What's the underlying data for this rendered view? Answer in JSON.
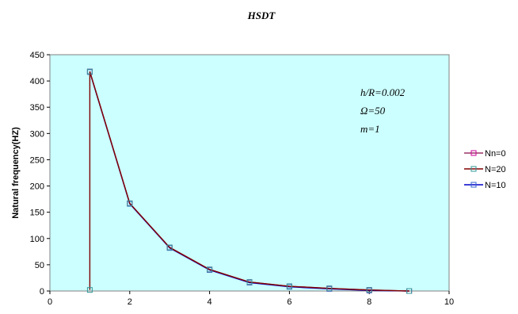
{
  "chart_data": {
    "type": "line",
    "title": "HSDT",
    "xlabel": "",
    "ylabel": "Natural frequency(HZ)",
    "xlim": [
      0,
      10
    ],
    "ylim": [
      0,
      450
    ],
    "xticks": [
      "0",
      "2",
      "4",
      "6",
      "8",
      "10"
    ],
    "yticks": [
      "0",
      "50",
      "100",
      "150",
      "200",
      "250",
      "300",
      "350",
      "400",
      "450"
    ],
    "annotations": [
      "h/R=0.002",
      "Ω=50",
      "m=1"
    ],
    "legend_position": "right",
    "plot_background": "#ccffff",
    "grid": false,
    "series": [
      {
        "name": "Nn=0",
        "color": "#993366",
        "marker_color": "#cc0099",
        "points": [
          [
            1,
            418
          ],
          [
            2,
            167
          ],
          [
            3,
            83
          ],
          [
            4,
            41
          ],
          [
            5,
            17
          ],
          [
            6,
            9
          ],
          [
            7,
            5
          ],
          [
            8,
            2
          ],
          [
            9,
            0
          ]
        ]
      },
      {
        "name": "N=20",
        "color": "#800000",
        "marker_color": "#339999",
        "points": [
          [
            1,
            2
          ],
          [
            1,
            418
          ],
          [
            2,
            167
          ],
          [
            3,
            83
          ],
          [
            4,
            41
          ],
          [
            5,
            17
          ],
          [
            6,
            9
          ],
          [
            7,
            5
          ],
          [
            8,
            2
          ],
          [
            9,
            0
          ]
        ]
      },
      {
        "name": "N=10",
        "color": "#0000cc",
        "marker_color": "#3366cc",
        "points": [
          [
            1,
            417
          ],
          [
            2,
            166
          ],
          [
            3,
            82
          ],
          [
            4,
            40
          ],
          [
            5,
            16
          ],
          [
            6,
            8
          ],
          [
            7,
            4
          ],
          [
            8,
            1
          ],
          [
            9,
            0
          ]
        ]
      }
    ]
  }
}
